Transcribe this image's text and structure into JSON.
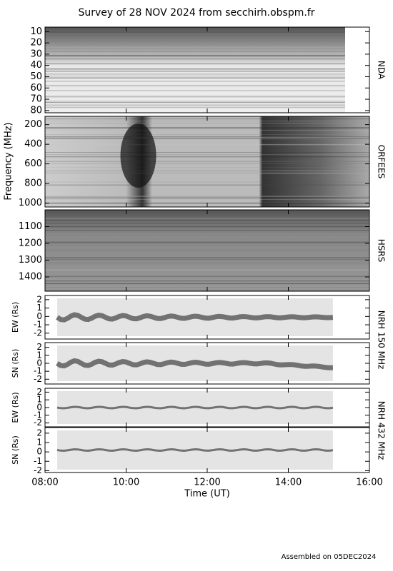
{
  "title": "Survey of 28 NOV 2024 from secchirh.obspm.fr",
  "ylabel": "Frequency (MHz)",
  "xlabel": "Time (UT)",
  "footer": "Assembled on 05DEC2024",
  "xlim": [
    8,
    16
  ],
  "xticks": [
    {
      "value": 8,
      "label": "08:00"
    },
    {
      "value": 10,
      "label": "10:00"
    },
    {
      "value": 12,
      "label": "12:00"
    },
    {
      "value": 14,
      "label": "14:00"
    },
    {
      "value": 16,
      "label": "16:00"
    }
  ],
  "chart_data": [
    {
      "type": "heatmap",
      "label": "NDA",
      "inverted": true,
      "ylim": [
        6,
        82
      ],
      "yticks": [
        10,
        20,
        30,
        40,
        50,
        60,
        70,
        80
      ]
    },
    {
      "type": "heatmap",
      "label": "ORFEES",
      "inverted": true,
      "ylim": [
        115,
        1040
      ],
      "yticks": [
        200,
        400,
        600,
        800,
        1000
      ]
    },
    {
      "type": "heatmap",
      "label": "HSRS",
      "inverted": true,
      "ylim": [
        1000,
        1485
      ],
      "yticks": [
        1100,
        1200,
        1300,
        1400
      ]
    },
    {
      "type": "position",
      "label": "NRH 150 MHz",
      "ylabel": "EW (Rs)",
      "ylim": [
        -2.7,
        2.5
      ],
      "yticks": [
        -2,
        -1,
        0,
        1,
        2
      ]
    },
    {
      "type": "position",
      "ylabel": "SN (Rs)",
      "ylim": [
        -2.6,
        2.6
      ],
      "yticks": [
        -2,
        -1,
        0,
        1,
        2
      ]
    },
    {
      "type": "position",
      "label": "NRH 432 MHz",
      "ylabel": "EW (Rs)",
      "ylim": [
        -2.5,
        2.5
      ],
      "yticks": [
        -2,
        -1,
        0,
        1,
        2
      ]
    },
    {
      "type": "position",
      "ylabel": "SN (Rs)",
      "ylim": [
        -2.2,
        2.6
      ],
      "yticks": [
        -2,
        -1,
        0,
        1,
        2
      ]
    }
  ]
}
